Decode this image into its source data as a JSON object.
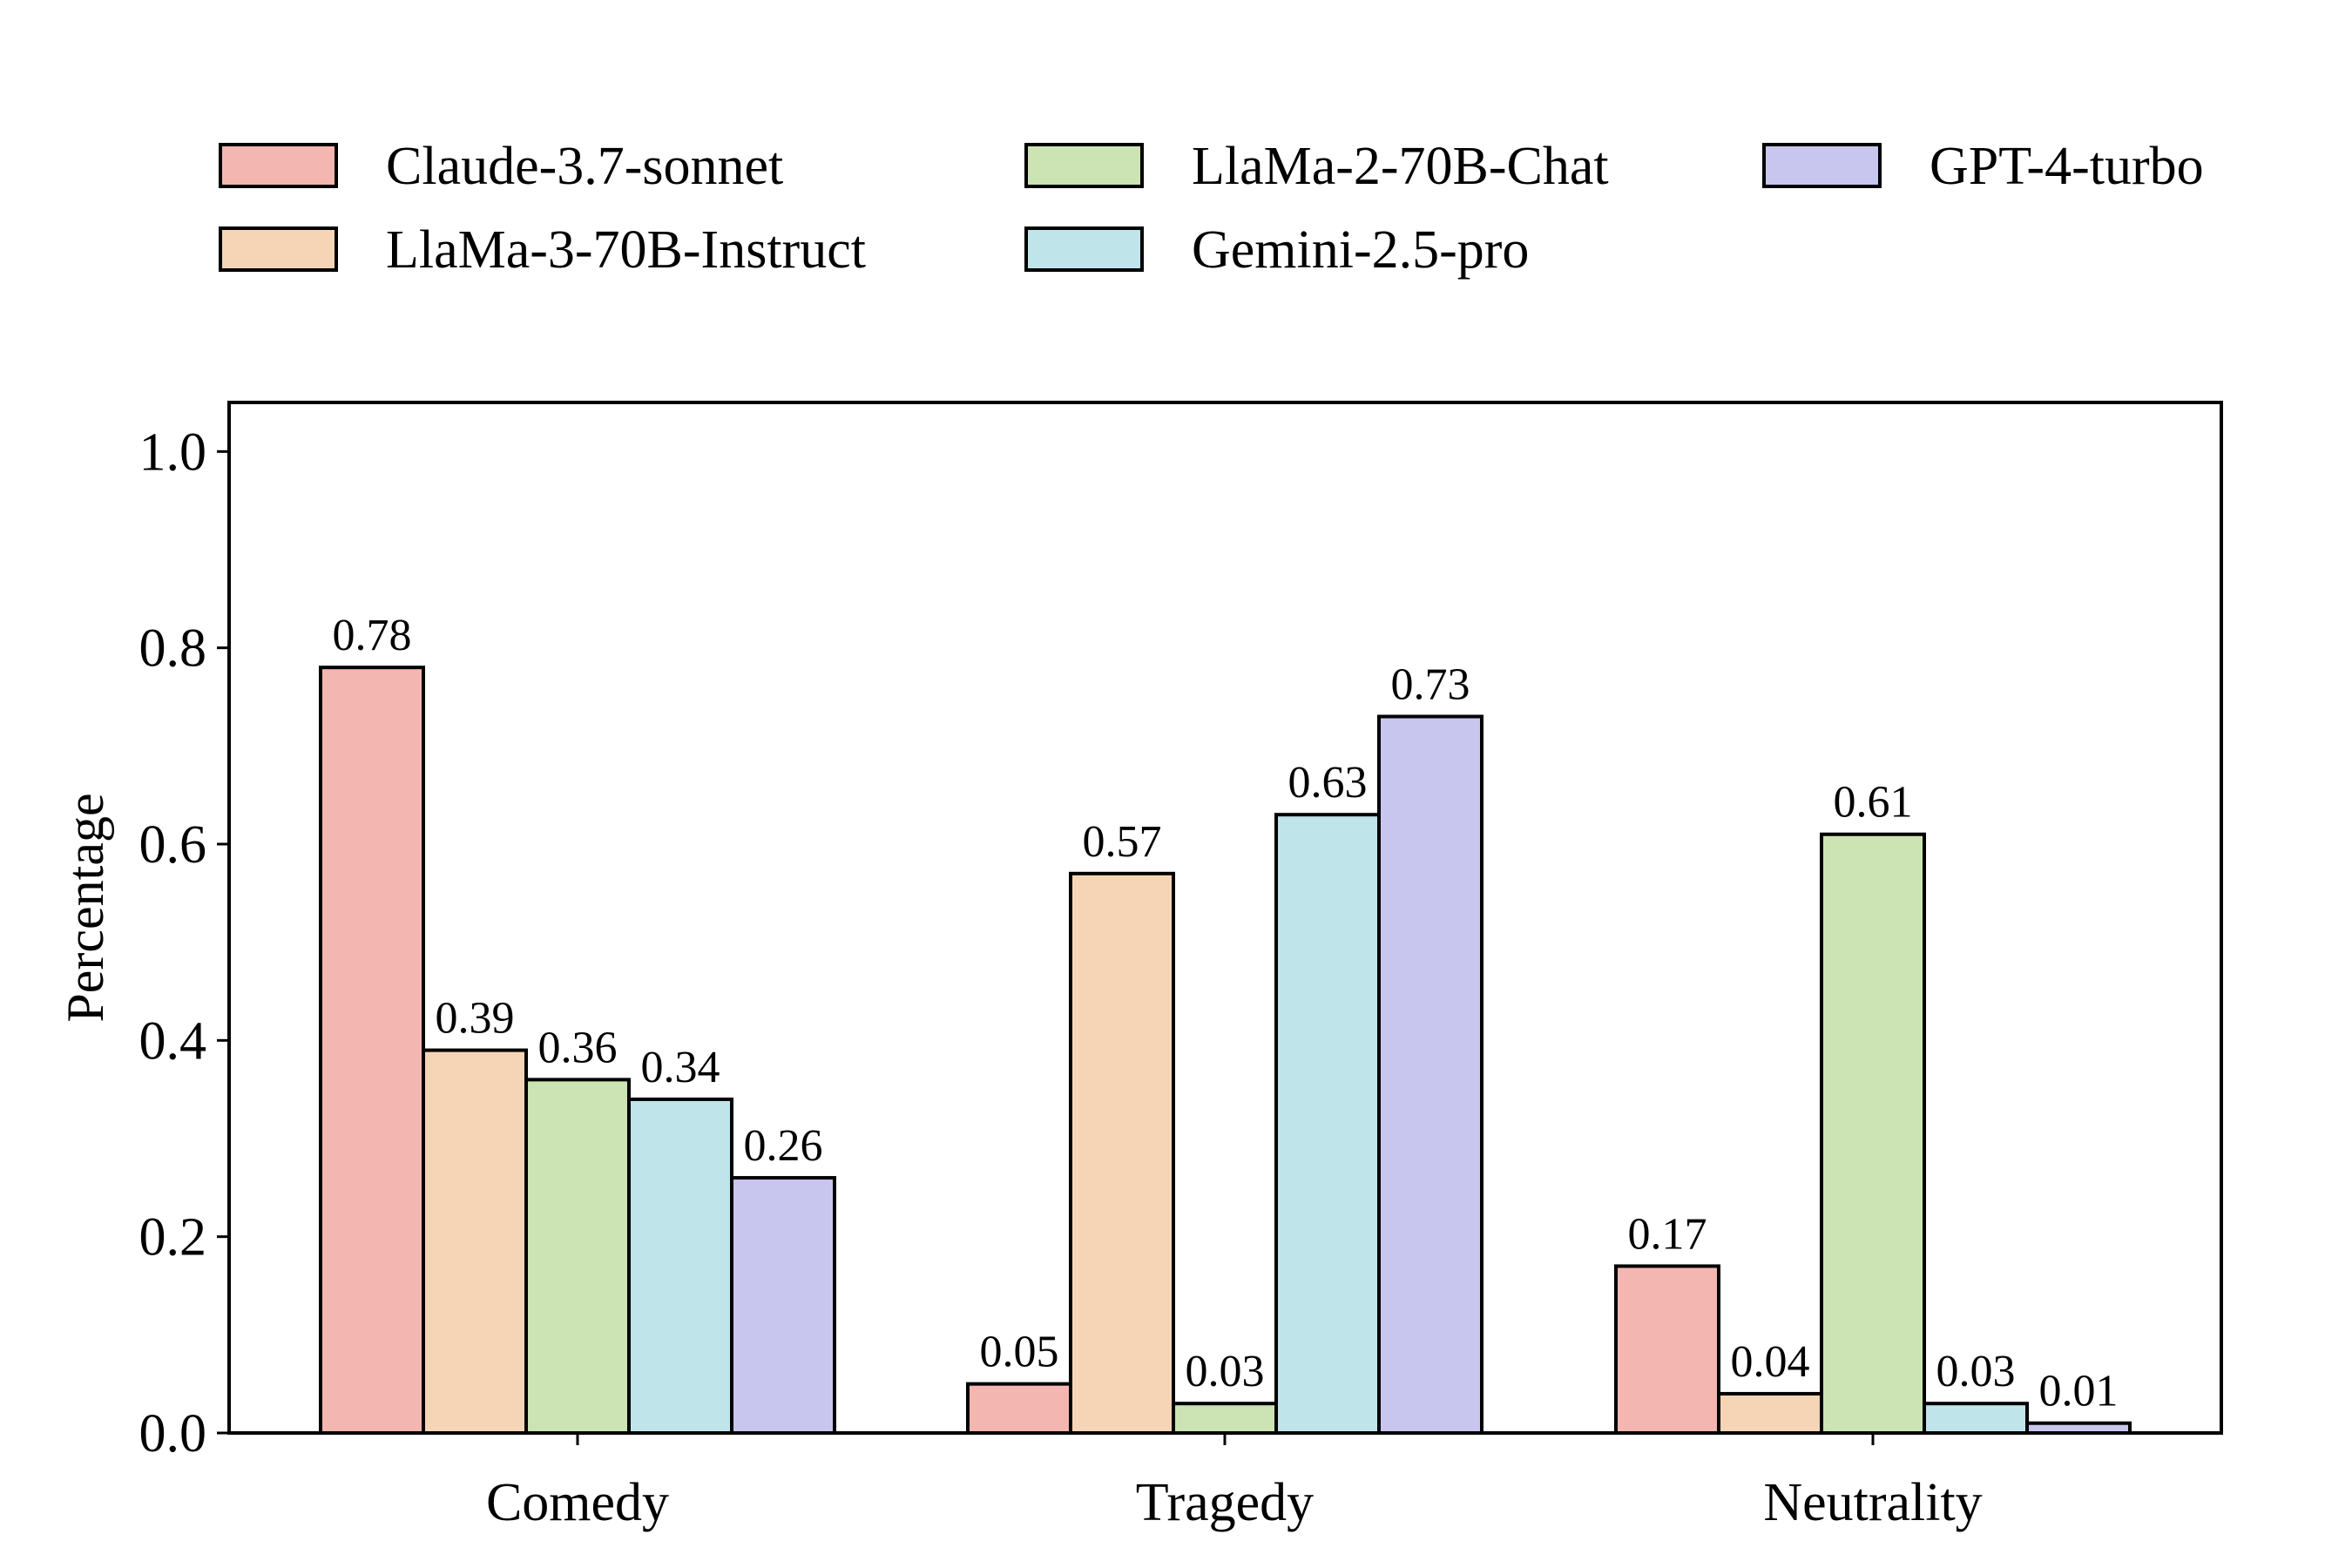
{
  "chart_data": {
    "type": "bar",
    "title": "",
    "xlabel": "",
    "ylabel": "Percentage",
    "ylim": [
      0,
      1.05
    ],
    "yticks": [
      "0.0",
      "0.2",
      "0.4",
      "0.6",
      "0.8",
      "1.0"
    ],
    "categories": [
      "Comedy",
      "Tragedy",
      "Neutrality"
    ],
    "legend_position": "top",
    "series": [
      {
        "name": "Claude-3.7-sonnet",
        "color": "#f4b6b0",
        "values": [
          0.78,
          0.05,
          0.17
        ],
        "labels": [
          "0.78",
          "0.05",
          "0.17"
        ]
      },
      {
        "name": "LlaMa-3-70B-Instruct",
        "color": "#f5d5b5",
        "values": [
          0.39,
          0.57,
          0.04
        ],
        "labels": [
          "0.39",
          "0.57",
          "0.04"
        ]
      },
      {
        "name": "LlaMa-2-70B-Chat",
        "color": "#cce3b4",
        "values": [
          0.36,
          0.03,
          0.61
        ],
        "labels": [
          "0.36",
          "0.03",
          "0.61"
        ]
      },
      {
        "name": "Gemini-2.5-pro",
        "color": "#bfe4ea",
        "values": [
          0.34,
          0.63,
          0.03
        ],
        "labels": [
          "0.34",
          "0.63",
          "0.03"
        ]
      },
      {
        "name": "GPT-4-turbo",
        "color": "#c8c5ef",
        "values": [
          0.26,
          0.73,
          0.01
        ],
        "labels": [
          "0.26",
          "0.73",
          "0.01"
        ]
      }
    ]
  }
}
